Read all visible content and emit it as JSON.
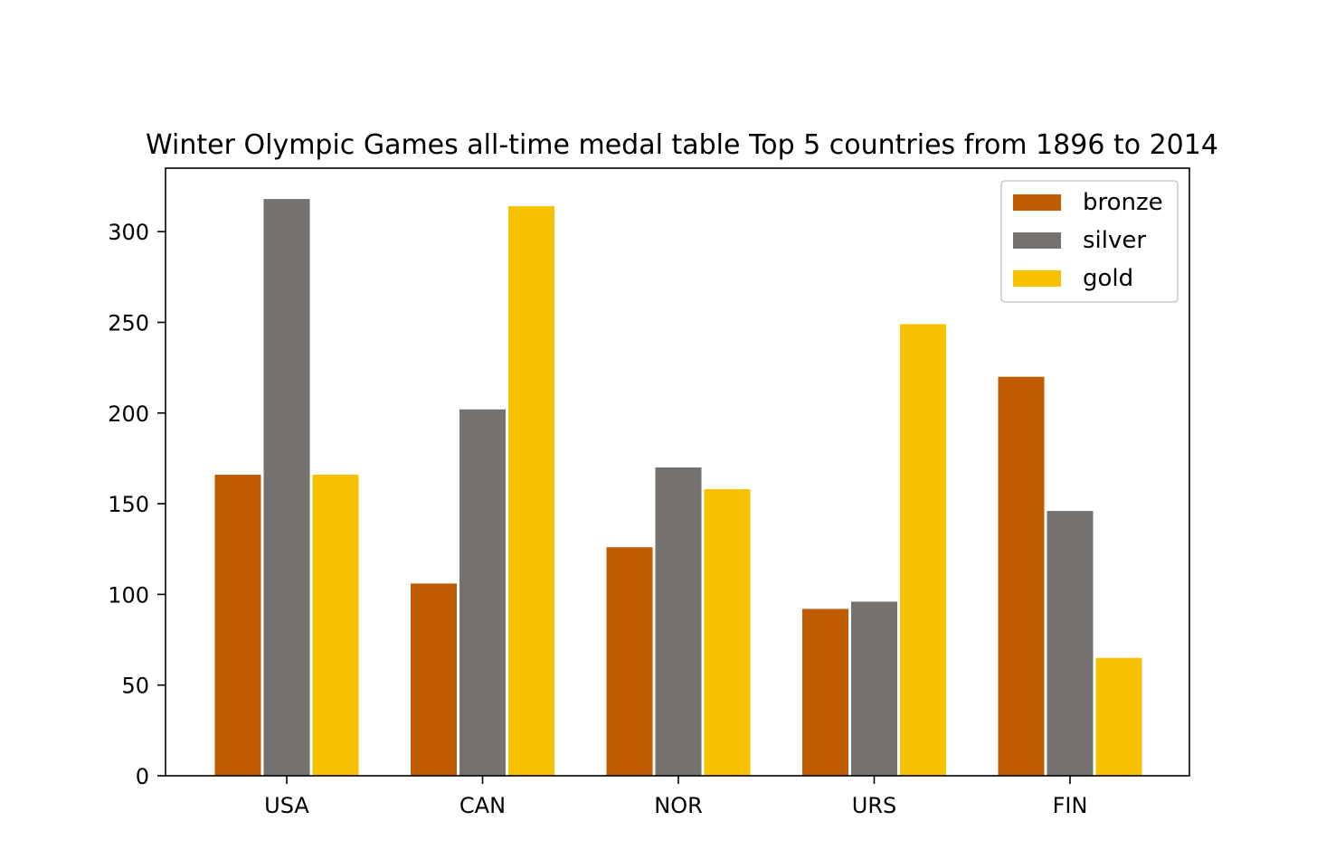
{
  "chart_data": {
    "type": "bar",
    "title": "Winter Olympic Games all-time medal table Top 5 countries from 1896 to 2014",
    "xlabel": "",
    "ylabel": "",
    "categories": [
      "USA",
      "CAN",
      "NOR",
      "URS",
      "FIN"
    ],
    "series": [
      {
        "name": "bronze",
        "color": "#bf5b00",
        "values": [
          166,
          106,
          126,
          92,
          220
        ]
      },
      {
        "name": "silver",
        "color": "#75716f",
        "values": [
          318,
          202,
          170,
          96,
          146
        ]
      },
      {
        "name": "gold",
        "color": "#f7c100",
        "values": [
          166,
          314,
          158,
          249,
          65
        ]
      }
    ],
    "ylim": [
      0,
      335
    ],
    "yticks": [
      0,
      50,
      100,
      150,
      200,
      250,
      300
    ],
    "grid": false,
    "legend_position": "top-right"
  }
}
